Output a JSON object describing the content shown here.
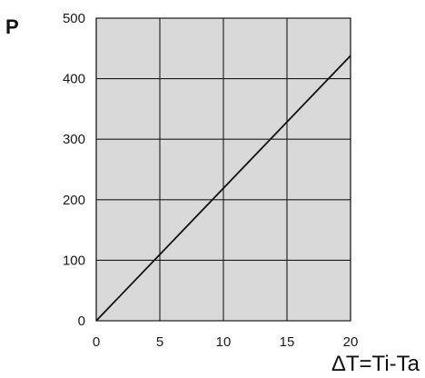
{
  "chart_data": {
    "type": "line",
    "title": "",
    "ylabel": "P",
    "xlabel": "ΔT=Ti-Ta",
    "xlim": [
      0,
      20
    ],
    "ylim": [
      0,
      500
    ],
    "xticks": [
      0,
      5,
      10,
      15,
      20
    ],
    "yticks": [
      0,
      100,
      200,
      300,
      400,
      500
    ],
    "x_tick_labels": [
      "0",
      "5",
      "10",
      "15",
      "20"
    ],
    "y_tick_labels": [
      "0",
      "100",
      "200",
      "300",
      "400",
      "500"
    ],
    "grid": true,
    "series": [
      {
        "x": [
          0,
          20
        ],
        "y": [
          0,
          438
        ]
      }
    ],
    "colors": {
      "plot_background": "#d9d9d9",
      "line": "#111111",
      "grid": "#1a1a1a"
    }
  }
}
